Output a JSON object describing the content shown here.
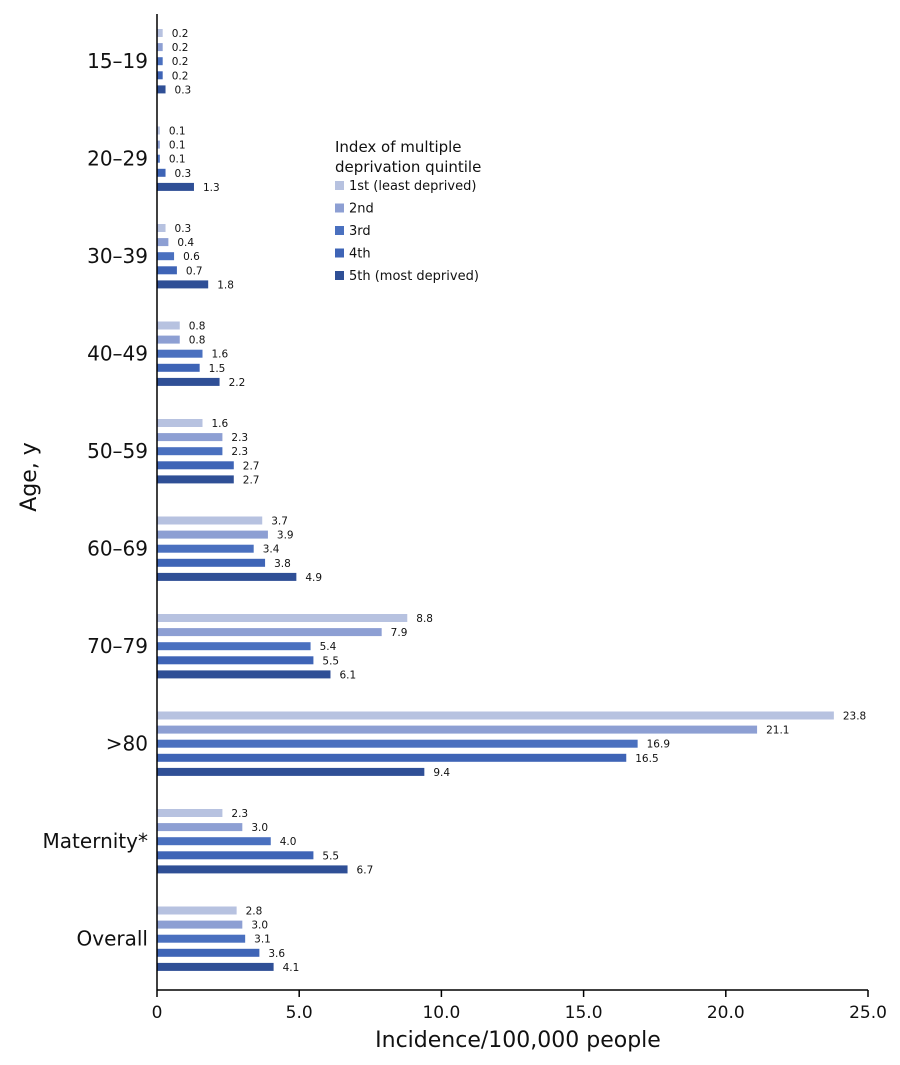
{
  "chart_data": {
    "type": "bar",
    "orientation": "horizontal",
    "categories": [
      "15–19",
      "20–29",
      "30–39",
      "40–49",
      "50–59",
      "60–69",
      "70–79",
      ">80",
      "Maternity*",
      "Overall"
    ],
    "series": [
      {
        "name": "1st (least deprived)",
        "color": "#b7c2e0",
        "values": [
          0.2,
          0.1,
          0.3,
          0.8,
          1.6,
          3.7,
          8.8,
          23.8,
          2.3,
          2.8
        ],
        "labels": [
          "0.2",
          "0.1",
          "0.3",
          "0.8",
          "1.6",
          "3.7",
          "8.8",
          "23.8",
          "2.3",
          "2.8"
        ]
      },
      {
        "name": "2nd",
        "color": "#8d9fd3",
        "values": [
          0.2,
          0.1,
          0.4,
          0.8,
          2.3,
          3.9,
          7.9,
          21.1,
          3.0,
          3.0
        ],
        "labels": [
          "0.2",
          "0.1",
          "0.4",
          "0.8",
          "2.3",
          "3.9",
          "7.9",
          "21.1",
          "3.0",
          "3.0"
        ]
      },
      {
        "name": "3rd",
        "color": "#4a70bf",
        "values": [
          0.2,
          0.1,
          0.6,
          1.6,
          2.3,
          3.4,
          5.4,
          16.9,
          4.0,
          3.1
        ],
        "labels": [
          "0.2",
          "0.1",
          "0.6",
          "1.6",
          "2.3",
          "3.4",
          "5.4",
          "16.9",
          "4.0",
          "3.1"
        ]
      },
      {
        "name": "4th",
        "color": "#3e64b6",
        "values": [
          0.2,
          0.3,
          0.7,
          1.5,
          2.7,
          3.8,
          5.5,
          16.5,
          5.5,
          3.6
        ],
        "labels": [
          "0.2",
          "0.3",
          "0.7",
          "1.5",
          "2.7",
          "3.8",
          "5.5",
          "16.5",
          "5.5",
          "3.6"
        ]
      },
      {
        "name": "5th (most deprived)",
        "color": "#2f4f96",
        "values": [
          0.3,
          1.3,
          1.8,
          2.2,
          2.7,
          4.9,
          6.1,
          9.4,
          6.7,
          4.1
        ],
        "labels": [
          "0.3",
          "1.3",
          "1.8",
          "2.2",
          "2.7",
          "4.9",
          "6.1",
          "9.4",
          "6.7",
          "4.1"
        ]
      }
    ],
    "xlabel": "Incidence/100,000 people",
    "ylabel": "Age, y",
    "xlim": [
      0,
      25
    ],
    "xticks": [
      "0",
      "5.0",
      "10.0",
      "15.0",
      "20.0",
      "25.0"
    ],
    "xtick_values": [
      0,
      5,
      10,
      15,
      20,
      25
    ],
    "grid": false,
    "legend": {
      "title": "Index of multiple deprivation quintile",
      "title_lines": [
        "Index of multiple",
        "deprivation quintile"
      ],
      "placement": "top-center"
    }
  }
}
